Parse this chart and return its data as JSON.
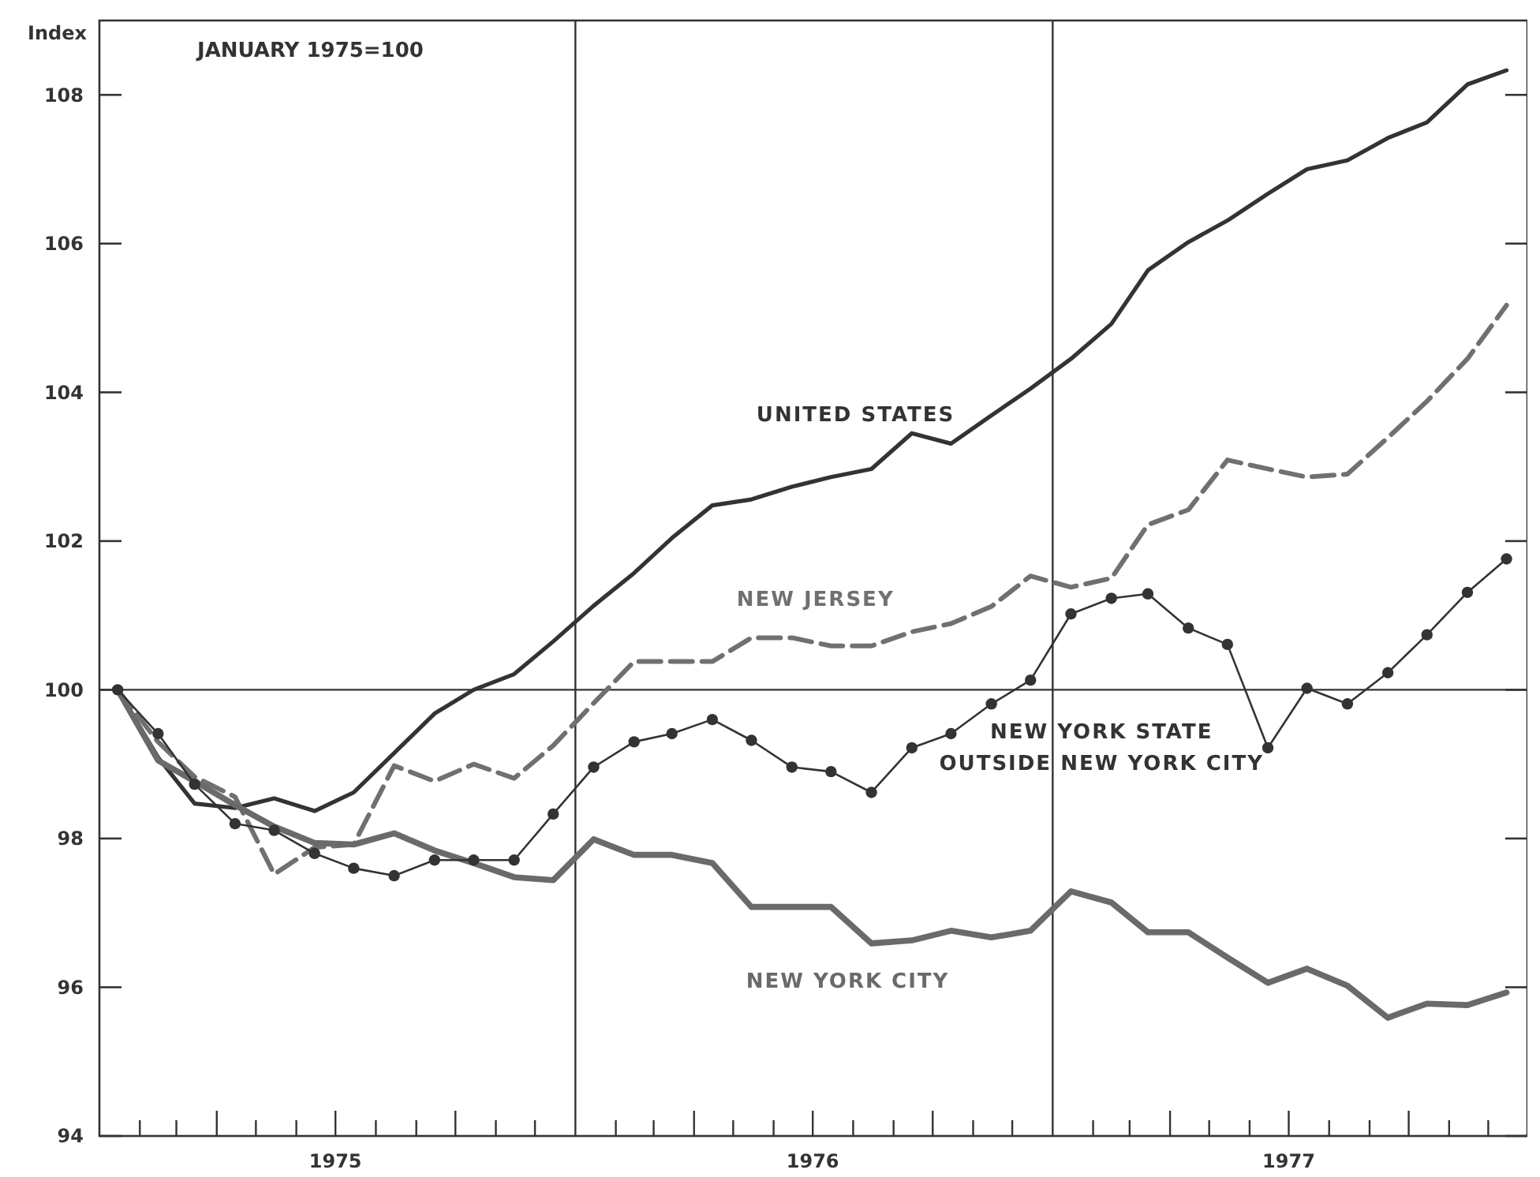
{
  "chart_data": {
    "type": "line",
    "ylabel": "Index",
    "annotations": [
      "JANUARY 1975=100"
    ],
    "x": [
      "1975-01-15",
      "1975-02-15",
      "1975-03-15",
      "1975-04-15",
      "1975-05-15",
      "1975-06-15",
      "1975-07-15",
      "1975-08-15",
      "1975-09-15",
      "1975-10-15",
      "1975-11-15",
      "1975-12-15",
      "1976-01-15",
      "1976-02-15",
      "1976-03-15",
      "1976-04-15",
      "1976-05-15",
      "1976-06-15",
      "1976-07-15",
      "1976-08-15",
      "1976-09-15",
      "1976-10-15",
      "1976-11-15",
      "1976-12-15",
      "1977-01-15",
      "1977-02-15",
      "1977-03-15",
      "1977-04-15",
      "1977-05-15",
      "1977-06-15",
      "1977-07-15",
      "1977-08-15",
      "1977-09-15",
      "1977-10-15",
      "1977-11-15",
      "1977-12-15"
    ],
    "xlim": [
      "1975-01-01",
      "1977-12-31"
    ],
    "xticks": [
      {
        "value": "1975-02",
        "label": null
      },
      {
        "value": "1975-03",
        "label": null
      },
      {
        "value": "1975-04",
        "label": null
      },
      {
        "value": "1975-05",
        "label": null
      },
      {
        "value": "1975-06",
        "label": null
      },
      {
        "value": "1975-07",
        "label": "1975"
      },
      {
        "value": "1975-08",
        "label": null
      },
      {
        "value": "1975-09",
        "label": null
      },
      {
        "value": "1975-10",
        "label": null
      },
      {
        "value": "1975-11",
        "label": null
      },
      {
        "value": "1975-12",
        "label": null
      },
      {
        "value": "1976-02",
        "label": null
      },
      {
        "value": "1976-03",
        "label": null
      },
      {
        "value": "1976-04",
        "label": null
      },
      {
        "value": "1976-05",
        "label": null
      },
      {
        "value": "1976-06",
        "label": null
      },
      {
        "value": "1976-07",
        "label": "1976"
      },
      {
        "value": "1976-08",
        "label": null
      },
      {
        "value": "1976-09",
        "label": null
      },
      {
        "value": "1976-10",
        "label": null
      },
      {
        "value": "1976-11",
        "label": null
      },
      {
        "value": "1976-12",
        "label": null
      },
      {
        "value": "1977-02",
        "label": null
      },
      {
        "value": "1977-03",
        "label": null
      },
      {
        "value": "1977-04",
        "label": null
      },
      {
        "value": "1977-05",
        "label": null
      },
      {
        "value": "1977-06",
        "label": null
      },
      {
        "value": "1977-07",
        "label": "1977"
      },
      {
        "value": "1977-08",
        "label": null
      },
      {
        "value": "1977-09",
        "label": null
      },
      {
        "value": "1977-10",
        "label": null
      },
      {
        "value": "1977-11",
        "label": null
      },
      {
        "value": "1977-12",
        "label": null
      }
    ],
    "ylim": [
      94,
      109
    ],
    "yticks": [
      94,
      96,
      98,
      100,
      102,
      104,
      106,
      108
    ],
    "grid": false,
    "ref_lines": [
      {
        "axis": "y",
        "value": 100
      },
      {
        "axis": "x",
        "value": "1976-01"
      },
      {
        "axis": "x",
        "value": "1977-01"
      }
    ],
    "series": [
      {
        "name": "UNITED STATES",
        "color": "#333333",
        "marker": "none",
        "line_style": "solid",
        "values": [
          100,
          99.09,
          98.47,
          98.41,
          98.54,
          98.37,
          98.62,
          99.15,
          99.68,
          100.0,
          100.21,
          100.65,
          101.13,
          101.57,
          102.04,
          102.48,
          102.56,
          102.73,
          102.86,
          102.97,
          103.45,
          103.31,
          103.69,
          104.05,
          104.45,
          104.92,
          105.64,
          106.02,
          106.31,
          106.67,
          107.0,
          107.12,
          107.42,
          107.63,
          108.14,
          108.33
        ]
      },
      {
        "name": "NEW JERSEY",
        "color": "#707070",
        "marker": "none",
        "line_style": "dashed",
        "values": [
          100,
          99.3,
          98.83,
          98.56,
          97.52,
          97.88,
          97.92,
          98.98,
          98.77,
          99.0,
          98.81,
          99.25,
          99.82,
          100.38,
          100.38,
          100.38,
          100.7,
          100.7,
          100.59,
          100.59,
          100.78,
          100.89,
          101.12,
          101.53,
          101.38,
          101.5,
          102.22,
          102.42,
          103.09,
          102.97,
          102.86,
          102.9,
          103.39,
          103.88,
          104.45,
          105.17
        ]
      },
      {
        "name": "NEW YORK STATE OUTSIDE NEW YORK CITY",
        "color": "#333333",
        "marker": "circle",
        "line_style": "solid",
        "values": [
          100,
          99.41,
          98.73,
          98.2,
          98.11,
          97.8,
          97.6,
          97.5,
          97.71,
          97.71,
          97.71,
          98.33,
          98.96,
          99.3,
          99.41,
          99.6,
          99.32,
          98.96,
          98.9,
          98.62,
          99.22,
          99.41,
          99.81,
          100.13,
          101.02,
          101.23,
          101.29,
          100.83,
          100.61,
          99.22,
          100.02,
          99.81,
          100.23,
          100.74,
          101.31,
          101.76
        ]
      },
      {
        "name": "NEW YORK CITY",
        "color": "#6a6a6a",
        "marker": "none",
        "line_style": "solid",
        "values": [
          100,
          99.05,
          98.77,
          98.45,
          98.16,
          97.94,
          97.92,
          98.07,
          97.84,
          97.67,
          97.48,
          97.44,
          97.99,
          97.78,
          97.78,
          97.67,
          97.08,
          97.08,
          97.08,
          96.59,
          96.63,
          96.76,
          96.67,
          96.76,
          97.29,
          97.14,
          96.74,
          96.74,
          96.4,
          96.06,
          96.25,
          96.02,
          95.59,
          95.78,
          95.76,
          95.93
        ]
      }
    ]
  }
}
